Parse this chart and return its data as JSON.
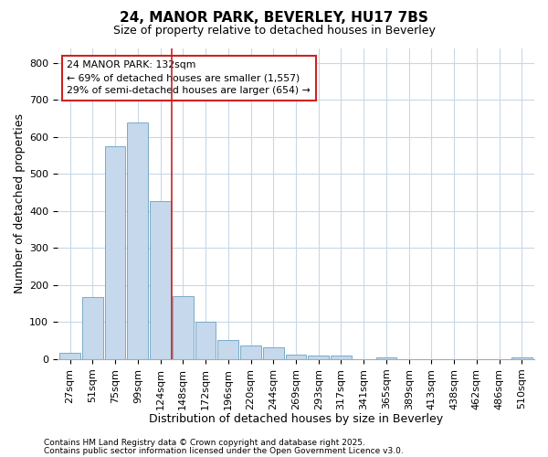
{
  "title1": "24, MANOR PARK, BEVERLEY, HU17 7BS",
  "title2": "Size of property relative to detached houses in Beverley",
  "xlabel": "Distribution of detached houses by size in Beverley",
  "ylabel": "Number of detached properties",
  "bar_labels": [
    "27sqm",
    "51sqm",
    "75sqm",
    "99sqm",
    "124sqm",
    "148sqm",
    "172sqm",
    "196sqm",
    "220sqm",
    "244sqm",
    "269sqm",
    "293sqm",
    "317sqm",
    "341sqm",
    "365sqm",
    "389sqm",
    "413sqm",
    "438sqm",
    "462sqm",
    "486sqm",
    "510sqm"
  ],
  "bar_values": [
    18,
    168,
    575,
    638,
    428,
    170,
    102,
    52,
    38,
    31,
    13,
    10,
    9,
    0,
    5,
    0,
    0,
    0,
    0,
    0,
    5
  ],
  "bar_color": "#c5d8ec",
  "bar_edge_color": "#7aaac8",
  "vline_x": 4.5,
  "vline_color": "#cc2222",
  "annotation_line1": "24 MANOR PARK: 132sqm",
  "annotation_line2": "← 69% of detached houses are smaller (1,557)",
  "annotation_line3": "29% of semi-detached houses are larger (654) →",
  "annotation_box_facecolor": "#ffffff",
  "annotation_box_edgecolor": "#cc2222",
  "ylim": [
    0,
    840
  ],
  "yticks": [
    0,
    100,
    200,
    300,
    400,
    500,
    600,
    700,
    800
  ],
  "footnote1": "Contains HM Land Registry data © Crown copyright and database right 2025.",
  "footnote2": "Contains public sector information licensed under the Open Government Licence v3.0.",
  "bg_color": "#ffffff",
  "plot_bg_color": "#ffffff",
  "grid_color": "#c8d8e8",
  "title1_fontsize": 11,
  "title2_fontsize": 9,
  "xlabel_fontsize": 9,
  "ylabel_fontsize": 9,
  "tick_fontsize": 8,
  "footnote_fontsize": 6.5
}
